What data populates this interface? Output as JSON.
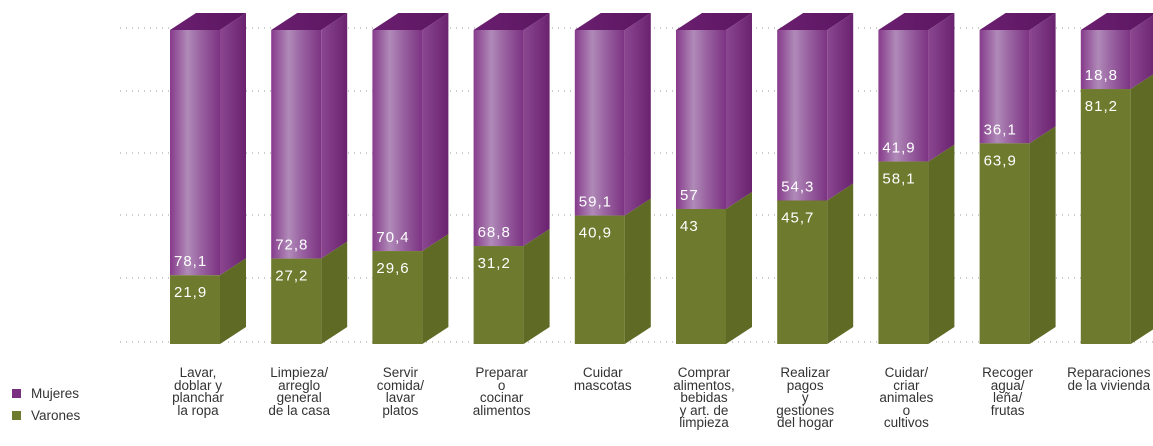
{
  "chart_data": {
    "type": "bar",
    "stacked": true,
    "percent": true,
    "grid": true,
    "legend_position": "bottom-left",
    "ylim": [
      0,
      100
    ],
    "categories": [
      "Lavar,\ndoblar y\nplanchar\nla ropa",
      "Limpieza/\narreglo\ngeneral\nde la casa",
      "Servir\ncomida/\nlavar\nplatos",
      "Preparar\no\ncocinar\nalimentos",
      "Cuidar\nmascotas",
      "Comprar\nalimentos,\nbebidas\ny art. de\nlimpieza",
      "Realizar\npagos\ny\ngestiones\ndel hogar",
      "Cuidar/\ncriar\nanimales\no\ncultivos",
      "Recoger\nagua/\nleña/\nfrutas",
      "Reparaciones\nde la vivienda"
    ],
    "series": [
      {
        "name": "Varones",
        "color": "#6e7a2e",
        "values": [
          21.9,
          27.2,
          29.6,
          31.2,
          40.9,
          43,
          45.7,
          58.1,
          63.9,
          81.2
        ],
        "labels": [
          "21,9",
          "27,2",
          "29,6",
          "31,2",
          "40,9",
          "43",
          "45,7",
          "58,1",
          "63,9",
          "81,2"
        ]
      },
      {
        "name": "Mujeres",
        "color": "#7a2e7f",
        "values": [
          78.1,
          72.8,
          70.4,
          68.8,
          59.1,
          57,
          54.3,
          41.9,
          36.1,
          18.8
        ],
        "labels": [
          "78,1",
          "72,8",
          "70,4",
          "68,8",
          "59,1",
          "57",
          "54,3",
          "41,9",
          "36,1",
          "18,8"
        ]
      }
    ]
  },
  "legend": {
    "items": [
      {
        "label": "Mujeres",
        "color": "#7a2e7f"
      },
      {
        "label": "Varones",
        "color": "#6e7a2e"
      }
    ]
  }
}
